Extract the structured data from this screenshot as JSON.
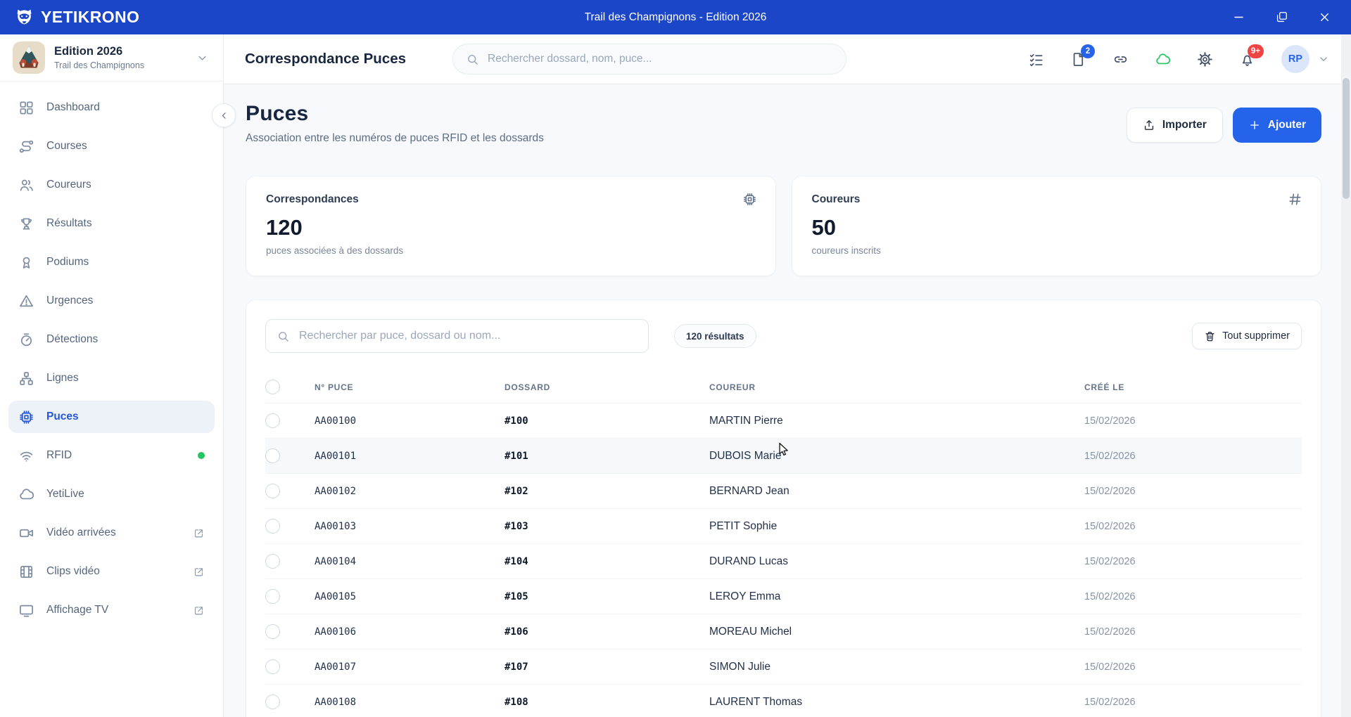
{
  "titlebar": {
    "app_name": "YETIKRONO",
    "window_title": "Trail des Champignons - Edition 2026"
  },
  "sidebar": {
    "edition_title": "Edition 2026",
    "edition_subtitle": "Trail des Champignons",
    "items": [
      {
        "name": "sidebar-item-dashboard",
        "label": "Dashboard",
        "icon": "dashboard"
      },
      {
        "name": "sidebar-item-courses",
        "label": "Courses",
        "icon": "courses"
      },
      {
        "name": "sidebar-item-coureurs",
        "label": "Coureurs",
        "icon": "users"
      },
      {
        "name": "sidebar-item-resultats",
        "label": "Résultats",
        "icon": "trophy"
      },
      {
        "name": "sidebar-item-podiums",
        "label": "Podiums",
        "icon": "medal"
      },
      {
        "name": "sidebar-item-urgences",
        "label": "Urgences",
        "icon": "alert"
      },
      {
        "name": "sidebar-item-detections",
        "label": "Détections",
        "icon": "timer"
      },
      {
        "name": "sidebar-item-lignes",
        "label": "Lignes",
        "icon": "network"
      },
      {
        "name": "sidebar-item-puces",
        "label": "Puces",
        "icon": "chip",
        "active": true
      },
      {
        "name": "sidebar-item-rfid",
        "label": "RFID",
        "icon": "wifi",
        "dot": true
      },
      {
        "name": "sidebar-item-yetilive",
        "label": "YetiLive",
        "icon": "cloud"
      },
      {
        "name": "sidebar-item-video-arrivees",
        "label": "Vidéo arrivées",
        "icon": "video",
        "external": true
      },
      {
        "name": "sidebar-item-clips-video",
        "label": "Clips vidéo",
        "icon": "film",
        "external": true
      },
      {
        "name": "sidebar-item-affichage-tv",
        "label": "Affichage TV",
        "icon": "tv",
        "external": true
      }
    ]
  },
  "header": {
    "title": "Correspondance Puces",
    "search_placeholder": "Rechercher dossard, nom, puce...",
    "file_badge": "2",
    "bell_badge": "9+",
    "avatar_initials": "RP"
  },
  "page": {
    "title": "Puces",
    "subtitle": "Association entre les numéros de puces RFID et les dossards",
    "import_label": "Importer",
    "add_label": "Ajouter"
  },
  "stats": [
    {
      "title": "Correspondances",
      "value": "120",
      "caption": "puces associées à des dossards",
      "icon": "chip"
    },
    {
      "title": "Coureurs",
      "value": "50",
      "caption": "coureurs inscrits",
      "icon": "hash"
    }
  ],
  "table": {
    "search_placeholder": "Rechercher par puce, dossard ou nom...",
    "results_badge": "120 résultats",
    "delete_all_label": "Tout supprimer",
    "columns": [
      "N° PUCE",
      "DOSSARD",
      "COUREUR",
      "CRÉÉ LE"
    ],
    "rows": [
      {
        "puce": "AA00100",
        "dossard": "#100",
        "coureur": "MARTIN Pierre",
        "date": "15/02/2026"
      },
      {
        "puce": "AA00101",
        "dossard": "#101",
        "coureur": "DUBOIS Marie",
        "date": "15/02/2026",
        "hover": true
      },
      {
        "puce": "AA00102",
        "dossard": "#102",
        "coureur": "BERNARD Jean",
        "date": "15/02/2026"
      },
      {
        "puce": "AA00103",
        "dossard": "#103",
        "coureur": "PETIT Sophie",
        "date": "15/02/2026"
      },
      {
        "puce": "AA00104",
        "dossard": "#104",
        "coureur": "DURAND Lucas",
        "date": "15/02/2026"
      },
      {
        "puce": "AA00105",
        "dossard": "#105",
        "coureur": "LEROY Emma",
        "date": "15/02/2026"
      },
      {
        "puce": "AA00106",
        "dossard": "#106",
        "coureur": "MOREAU Michel",
        "date": "15/02/2026"
      },
      {
        "puce": "AA00107",
        "dossard": "#107",
        "coureur": "SIMON Julie",
        "date": "15/02/2026"
      },
      {
        "puce": "AA00108",
        "dossard": "#108",
        "coureur": "LAURENT Thomas",
        "date": "15/02/2026"
      }
    ]
  },
  "colors": {
    "topbar_blue": "#1c46c8",
    "accent_blue": "#2563eb",
    "success_green": "#22c55e",
    "danger_red": "#ef4444"
  }
}
